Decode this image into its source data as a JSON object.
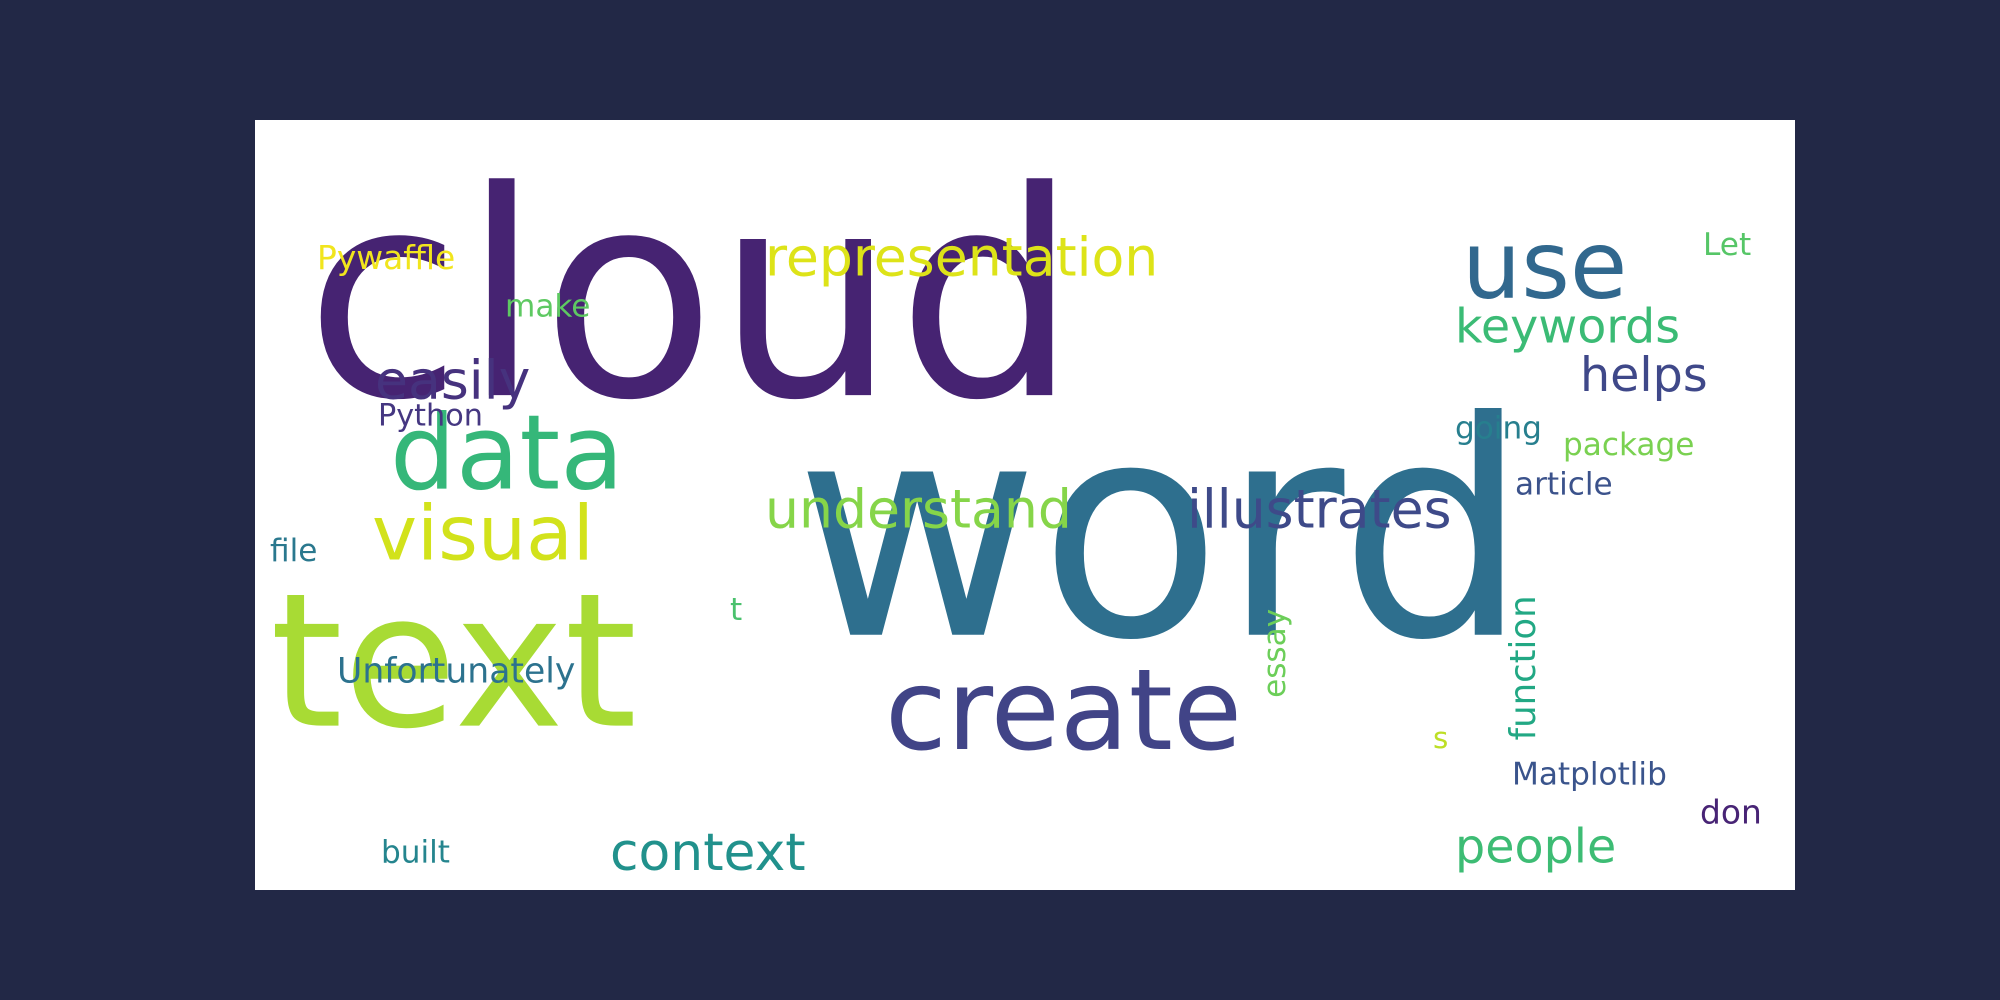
{
  "background_color": "#222846",
  "panel_color": "#ffffff",
  "words": [
    {
      "id": "cloud",
      "text": "cloud",
      "color": "#462372",
      "rotate": 0
    },
    {
      "id": "word",
      "text": "word",
      "color": "#2E6F8E",
      "rotate": 0
    },
    {
      "id": "text",
      "text": "text",
      "color": "#A8DB34",
      "rotate": 0
    },
    {
      "id": "create",
      "text": "create",
      "color": "#414487",
      "rotate": 0
    },
    {
      "id": "data",
      "text": "data",
      "color": "#35B779",
      "rotate": 0
    },
    {
      "id": "use",
      "text": "use",
      "color": "#31688E",
      "rotate": 0
    },
    {
      "id": "visual",
      "text": "visual",
      "color": "#D2E21B",
      "rotate": 0
    },
    {
      "id": "representation",
      "text": "representation",
      "color": "#DDE318",
      "rotate": 0
    },
    {
      "id": "illustrates",
      "text": "illustrates",
      "color": "#3E4A89",
      "rotate": 0
    },
    {
      "id": "understand",
      "text": "understand",
      "color": "#86D549",
      "rotate": 0
    },
    {
      "id": "context",
      "text": "context",
      "color": "#21918C",
      "rotate": 0
    },
    {
      "id": "easily",
      "text": "easily",
      "color": "#46327E",
      "rotate": 0
    },
    {
      "id": "keywords",
      "text": "keywords",
      "color": "#3BBB75",
      "rotate": 0
    },
    {
      "id": "helps",
      "text": "helps",
      "color": "#3F4889",
      "rotate": 0
    },
    {
      "id": "people",
      "text": "people",
      "color": "#3DBC74",
      "rotate": 0
    },
    {
      "id": "Unfortunately",
      "text": "Unfortunately",
      "color": "#2C728E",
      "rotate": 0
    },
    {
      "id": "Pywaffle",
      "text": "Pywaffle",
      "color": "#F1E51D",
      "rotate": 0
    },
    {
      "id": "make",
      "text": "make",
      "color": "#5EC962",
      "rotate": 0
    },
    {
      "id": "Python",
      "text": "Python",
      "color": "#453781",
      "rotate": 0
    },
    {
      "id": "Let",
      "text": "Let",
      "color": "#56C667",
      "rotate": 0
    },
    {
      "id": "going",
      "text": "going",
      "color": "#277F8E",
      "rotate": 0
    },
    {
      "id": "package",
      "text": "package",
      "color": "#7AD151",
      "rotate": 0
    },
    {
      "id": "article",
      "text": "article",
      "color": "#3B528B",
      "rotate": 0
    },
    {
      "id": "file",
      "text": "file",
      "color": "#2A788E",
      "rotate": 0
    },
    {
      "id": "t",
      "text": "t",
      "color": "#4AC16D",
      "rotate": 0
    },
    {
      "id": "essay",
      "text": "essay",
      "color": "#6CCE59",
      "rotate": -90
    },
    {
      "id": "function",
      "text": "function",
      "color": "#22A884",
      "rotate": -90
    },
    {
      "id": "s",
      "text": "s",
      "color": "#BDDF26",
      "rotate": 0
    },
    {
      "id": "Matplotlib",
      "text": "Matplotlib",
      "color": "#3A548C",
      "rotate": 0
    },
    {
      "id": "don",
      "text": "don",
      "color": "#482475",
      "rotate": 0
    },
    {
      "id": "built",
      "text": "built",
      "color": "#25858E",
      "rotate": 0
    }
  ]
}
